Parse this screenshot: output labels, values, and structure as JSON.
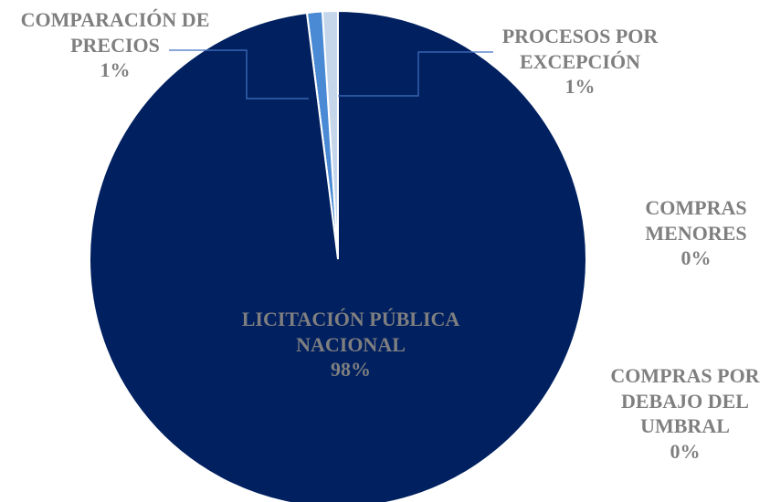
{
  "chart_data": {
    "type": "pie",
    "categories": [
      "LICITACIÓN PÚBLICA NACIONAL",
      "COMPRAS POR DEBAJO DEL UMBRAL",
      "COMPRAS MENORES",
      "COMPARACIÓN DE PRECIOS",
      "PROCESOS POR EXCEPCIÓN"
    ],
    "values": [
      98,
      0,
      0,
      1,
      1
    ],
    "value_labels": [
      "98%",
      "0%",
      "0%",
      "1%",
      "1%"
    ],
    "colors": [
      "#002060",
      "#2e75b6",
      "#9dc3e6",
      "#4a8ad4",
      "#c5d5ea"
    ]
  }
}
